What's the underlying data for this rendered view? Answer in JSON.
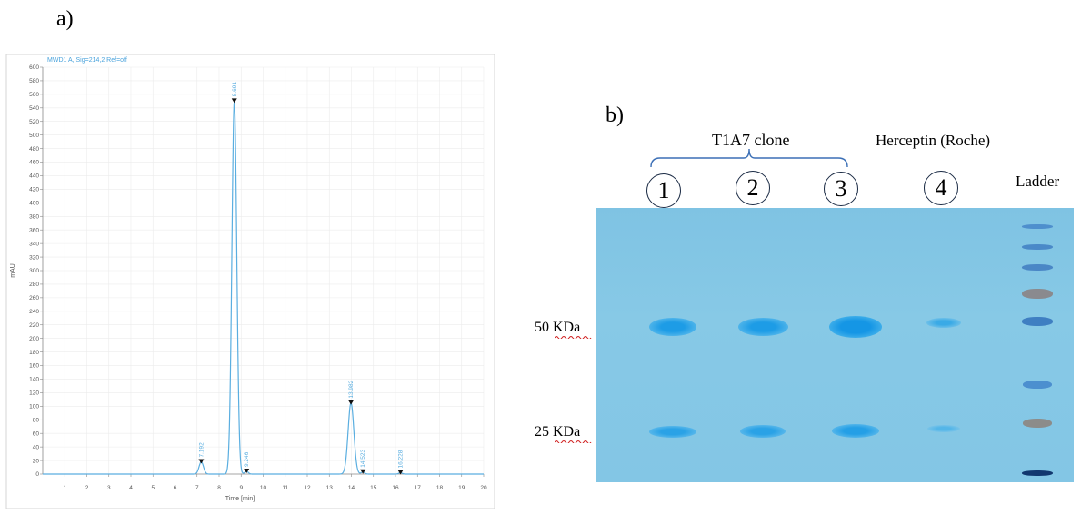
{
  "panels": {
    "a_label": "a)",
    "b_label": "b)"
  },
  "chart_data": [
    {
      "type": "line",
      "title": "MWD1 A, Sig=214,2 Ref=off",
      "xlabel": "Time [min]",
      "ylabel": "mAU",
      "xlim": [
        0,
        20
      ],
      "ylim": [
        0,
        600
      ],
      "x_ticks": [
        1,
        2,
        3,
        4,
        5,
        6,
        7,
        8,
        9,
        10,
        11,
        12,
        13,
        14,
        15,
        16,
        17,
        18,
        19,
        20
      ],
      "y_ticks": [
        0,
        20,
        40,
        60,
        80,
        100,
        120,
        140,
        160,
        180,
        200,
        220,
        240,
        260,
        280,
        300,
        320,
        340,
        360,
        380,
        400,
        420,
        440,
        460,
        480,
        500,
        520,
        540,
        560,
        580,
        600
      ],
      "grid": true,
      "line_color": "#5aaee0",
      "peaks": [
        {
          "retention_time": 7.192,
          "height": 18,
          "width": 0.1,
          "label": "7.192"
        },
        {
          "retention_time": 8.691,
          "height": 550,
          "width": 0.11,
          "label": "8.691"
        },
        {
          "retention_time": 9.246,
          "height": 4,
          "width": 0.08,
          "label": "9.246"
        },
        {
          "retention_time": 13.982,
          "height": 105,
          "width": 0.13,
          "label": "13.982"
        },
        {
          "retention_time": 14.523,
          "height": 3,
          "width": 0.08,
          "label": "14.523"
        },
        {
          "retention_time": 16.228,
          "height": 2,
          "width": 0.08,
          "label": "16.228"
        }
      ]
    }
  ],
  "gel": {
    "group_label": "T1A7 clone",
    "reference_label": "Herceptin (Roche)",
    "ladder_label": "Ladder",
    "lanes": [
      "1",
      "2",
      "3",
      "4"
    ],
    "markers": [
      {
        "label": "50 KDa"
      },
      {
        "label": "25 KDa"
      }
    ],
    "band_color": "#27a3e8",
    "ladder_color": "#3a7ec4"
  }
}
